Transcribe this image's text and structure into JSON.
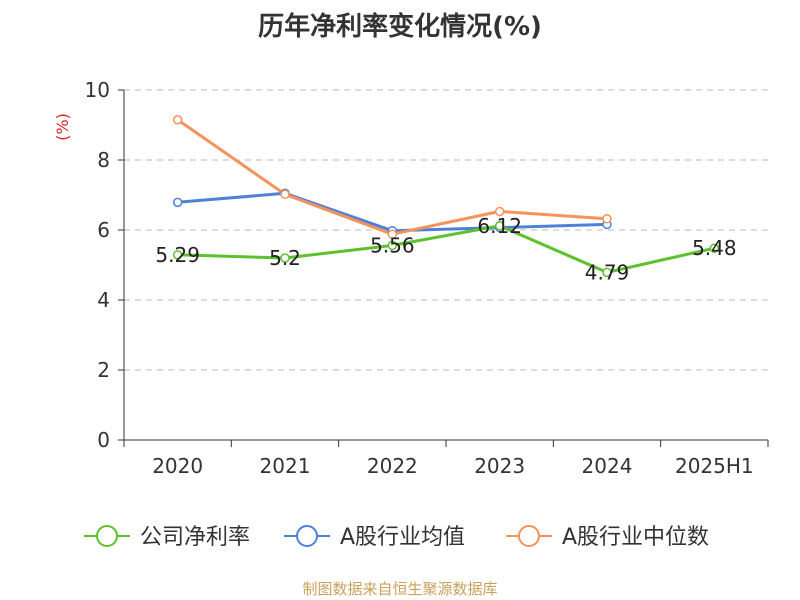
{
  "chart_data": {
    "type": "line",
    "title": "历年净利率变化情况(%)",
    "ylabel": "(%)",
    "xlabel": "",
    "categories": [
      "2020",
      "2021",
      "2022",
      "2023",
      "2024",
      "2025H1"
    ],
    "ylim": [
      0,
      10
    ],
    "yticks": [
      0,
      2,
      4,
      6,
      8,
      10
    ],
    "grid": "horizontal-dashed",
    "legend_position": "bottom",
    "series": [
      {
        "name": "公司净利率",
        "color": "#5cc12d",
        "values": [
          5.29,
          5.2,
          5.56,
          6.12,
          4.79,
          5.48
        ],
        "labels": true
      },
      {
        "name": "A股行业均值",
        "color": "#4f81d9",
        "values": [
          6.79,
          7.05,
          5.98,
          6.07,
          6.16,
          null
        ],
        "labels": false
      },
      {
        "name": "A股行业中位数",
        "color": "#f7925a",
        "values": [
          9.15,
          7.02,
          5.88,
          6.53,
          6.32,
          null
        ],
        "labels": false
      }
    ]
  },
  "footer": {
    "source": "制图数据来自恒生聚源数据库"
  }
}
